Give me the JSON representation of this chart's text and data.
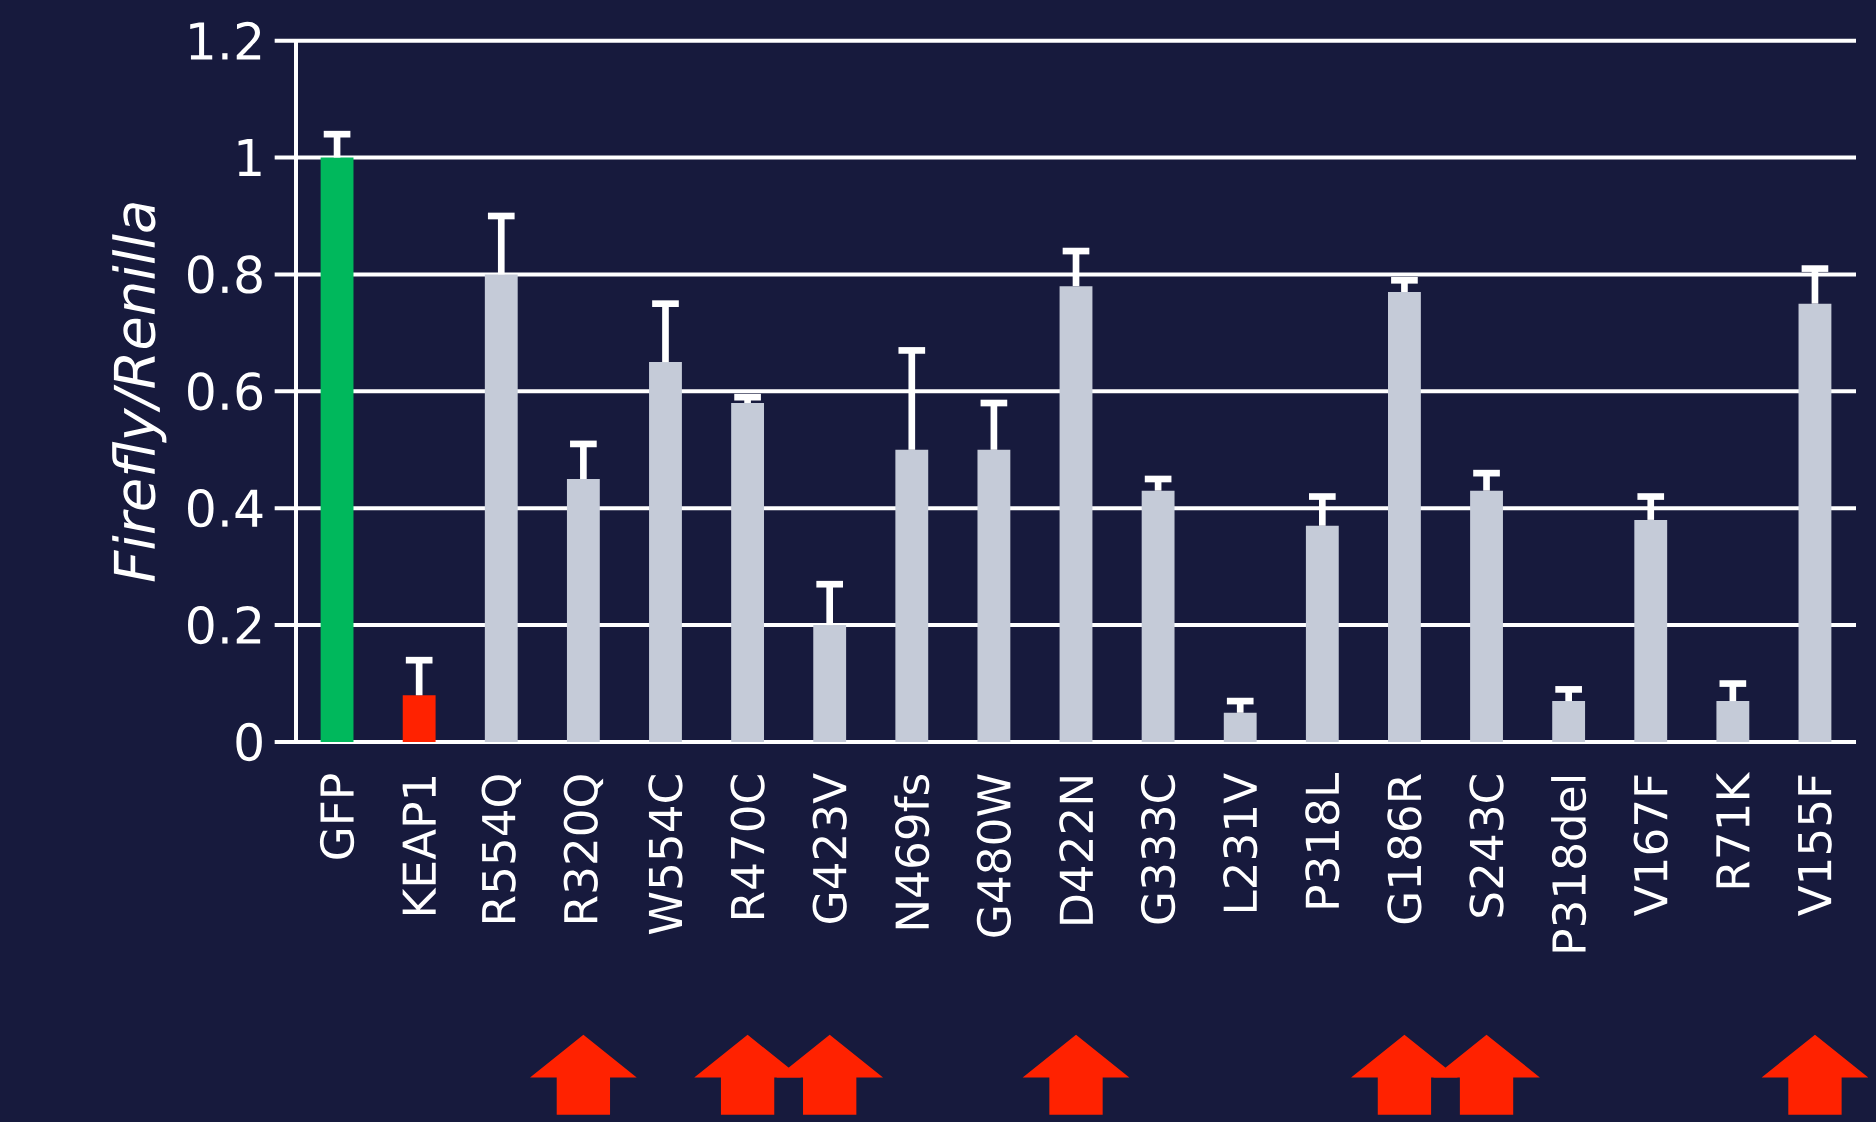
{
  "chart_data": {
    "type": "bar",
    "ylabel": "Firefly/Renilla",
    "categories": [
      "GFP",
      "KEAP1",
      "R554Q",
      "R320Q",
      "W554C",
      "R470C",
      "G423V",
      "N469fs",
      "G480W",
      "D422N",
      "G333C",
      "L231V",
      "P318L",
      "G186R",
      "S243C",
      "P318del",
      "V167F",
      "R71K",
      "V155F"
    ],
    "values": [
      1.0,
      0.08,
      0.8,
      0.45,
      0.65,
      0.58,
      0.2,
      0.5,
      0.5,
      0.78,
      0.43,
      0.05,
      0.37,
      0.77,
      0.43,
      0.07,
      0.38,
      0.07,
      0.75
    ],
    "errors": [
      [
        1.0,
        1.04
      ],
      [
        0.08,
        0.14
      ],
      [
        0.8,
        0.9
      ],
      [
        0.45,
        0.51
      ],
      [
        0.65,
        0.75
      ],
      [
        0.58,
        0.59
      ],
      [
        0.2,
        0.27
      ],
      [
        0.5,
        0.67
      ],
      [
        0.5,
        0.58
      ],
      [
        0.78,
        0.84
      ],
      [
        0.43,
        0.45
      ],
      [
        0.05,
        0.07
      ],
      [
        0.37,
        0.42
      ],
      [
        0.77,
        0.79
      ],
      [
        0.43,
        0.46
      ],
      [
        0.07,
        0.09
      ],
      [
        0.38,
        0.42
      ],
      [
        0.07,
        0.1
      ],
      [
        0.75,
        0.81
      ]
    ],
    "colors": [
      "#00b85c",
      "#ff2200",
      "#c5cbd8",
      "#c5cbd8",
      "#c5cbd8",
      "#c5cbd8",
      "#c5cbd8",
      "#c5cbd8",
      "#c5cbd8",
      "#c5cbd8",
      "#c5cbd8",
      "#c5cbd8",
      "#c5cbd8",
      "#c5cbd8",
      "#c5cbd8",
      "#c5cbd8",
      "#c5cbd8",
      "#c5cbd8",
      "#c5cbd8"
    ],
    "ylim": [
      0,
      1.2
    ],
    "yticks": [
      0,
      0.2,
      0.4,
      0.6,
      0.8,
      1,
      1.2
    ],
    "grid": "y"
  }
}
